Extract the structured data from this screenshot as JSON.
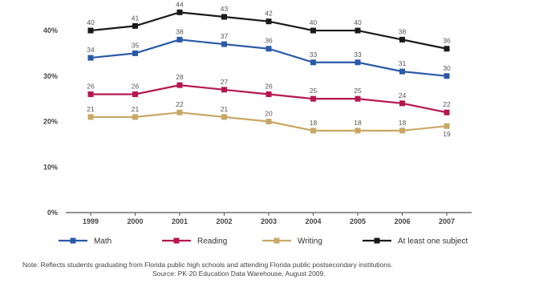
{
  "chart_data": {
    "type": "line",
    "title": "",
    "xlabel": "",
    "ylabel": "",
    "categories": [
      "1999",
      "2000",
      "2001",
      "2002",
      "2003",
      "2004",
      "2005",
      "2006",
      "2007"
    ],
    "y_ticks": [
      "0%",
      "10%",
      "20%",
      "30%",
      "40%"
    ],
    "ylim": [
      0,
      46
    ],
    "grid": false,
    "legend_position": "bottom",
    "series": [
      {
        "name": "Math",
        "color": "#2a5aa8",
        "marker": "square",
        "values": [
          34,
          35,
          38,
          37,
          36,
          33,
          33,
          31,
          30
        ]
      },
      {
        "name": "Reading",
        "color": "#b5174e",
        "marker": "square",
        "values": [
          26,
          26,
          28,
          27,
          26,
          25,
          25,
          24,
          22
        ]
      },
      {
        "name": "Writing",
        "color": "#c9a866",
        "marker": "square",
        "values": [
          21,
          21,
          22,
          21,
          20,
          18,
          18,
          18,
          19
        ]
      },
      {
        "name": "At least one subject",
        "color": "#1a1a1a",
        "marker": "square",
        "values": [
          40,
          41,
          44,
          43,
          42,
          40,
          40,
          38,
          36
        ]
      }
    ]
  },
  "note": "Note: Reflects students graduating from Florida public high schools and attending Florida public postsecondary institutions.",
  "source": "Source: PK-20 Education Data Warehouse, August 2009."
}
